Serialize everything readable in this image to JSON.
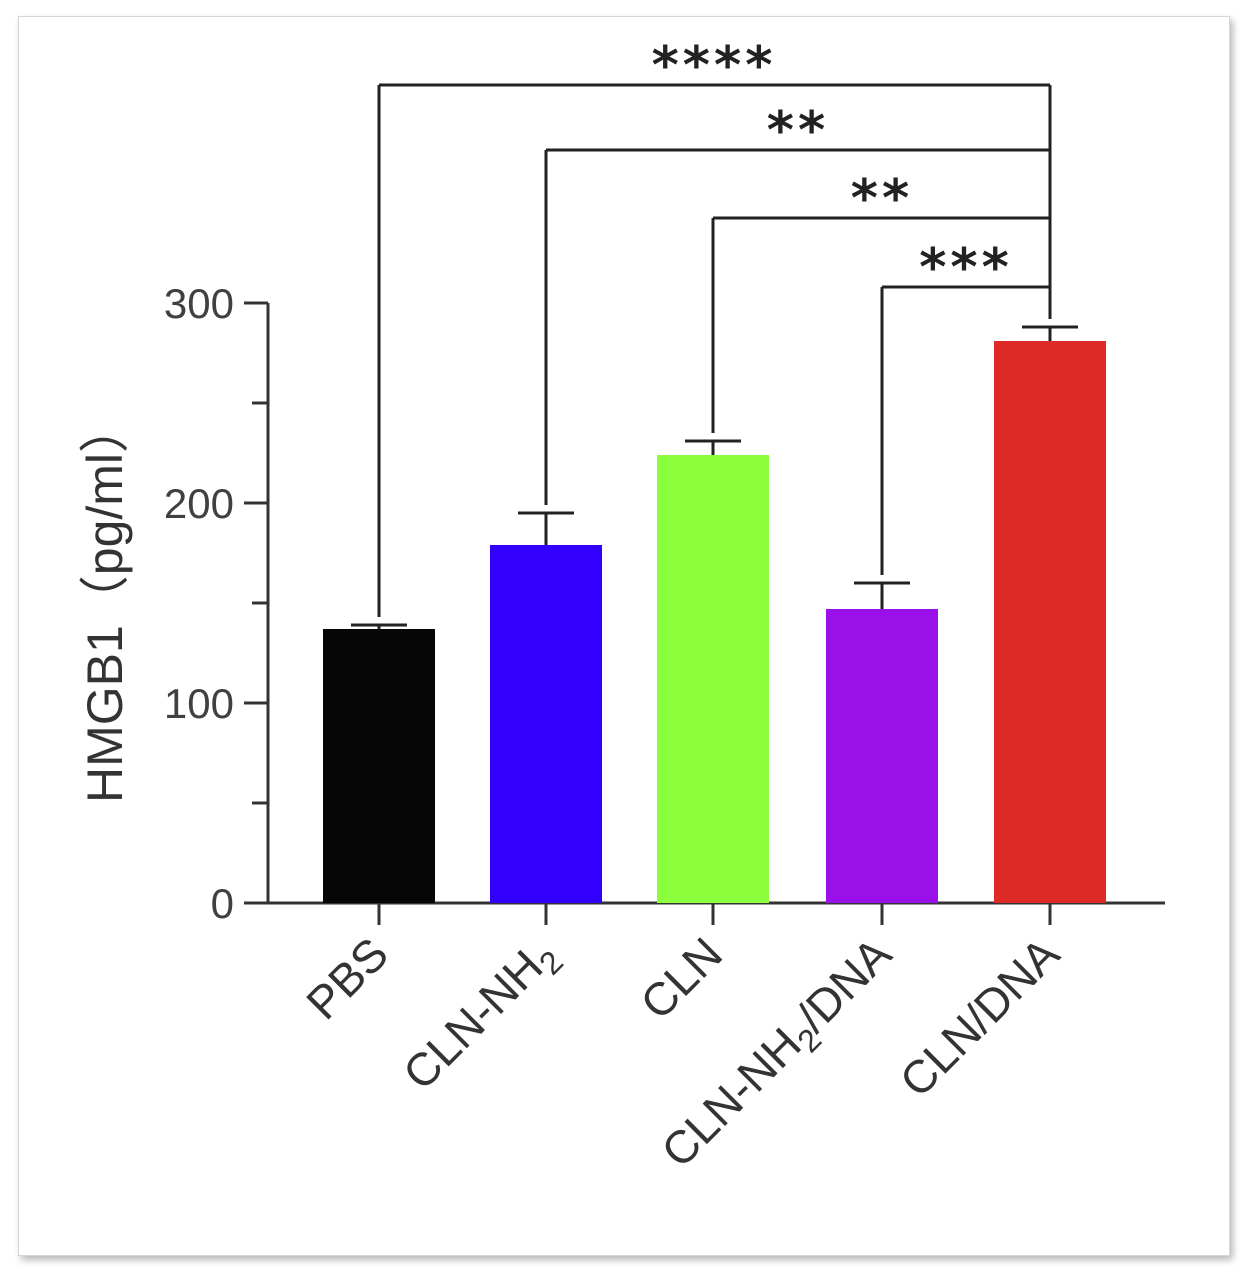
{
  "chart_data": {
    "type": "bar",
    "ylabel": "HMGB1（pg/ml）",
    "ylim": [
      0,
      300
    ],
    "yticks": [
      0,
      100,
      200,
      300
    ],
    "categories": [
      {
        "label": "PBS",
        "base": "PBS",
        "sub": "",
        "tail": ""
      },
      {
        "label": "CLN-NH2",
        "base": "CLN-NH",
        "sub": "2",
        "tail": ""
      },
      {
        "label": "CLN",
        "base": "CLN",
        "sub": "",
        "tail": ""
      },
      {
        "label": "CLN-NH2/DNA",
        "base": "CLN-NH",
        "sub": "2",
        "tail": "/DNA"
      },
      {
        "label": "CLN/DNA",
        "base": "CLN/DNA",
        "sub": "",
        "tail": ""
      }
    ],
    "values": [
      137,
      179,
      224,
      147,
      281
    ],
    "errors": [
      2,
      16,
      7,
      13,
      7
    ],
    "colors": [
      "#060606",
      "#3300ff",
      "#8cff3c",
      "#9a10e8",
      "#dd2a26"
    ],
    "significance": [
      {
        "from": 0,
        "to": 4,
        "label": "****"
      },
      {
        "from": 1,
        "to": 4,
        "label": "**"
      },
      {
        "from": 2,
        "to": 4,
        "label": "**"
      },
      {
        "from": 3,
        "to": 4,
        "label": "***"
      }
    ],
    "grid": false,
    "legend": "none"
  }
}
